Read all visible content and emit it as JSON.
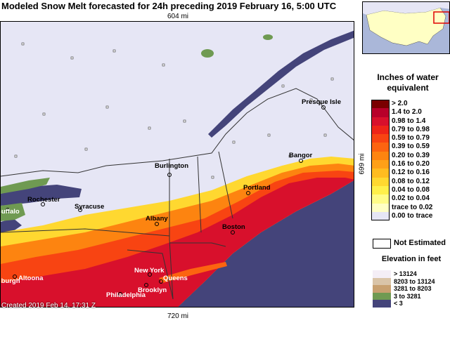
{
  "title": "Modeled Snow Melt forecasted for 24h preceding 2019 February 16, 5:00 UTC",
  "map": {
    "scale_top": "604 mi",
    "scale_bottom": "720 mi",
    "scale_right": "699 mi",
    "created": "Created 2019 Feb 14, 17:31 Z",
    "cities": {
      "presque_isle": "Presque Isle",
      "bangor": "Bangor",
      "burlington": "Burlington",
      "portland": "Portland",
      "rochester": "Rochester",
      "syracuse": "Syracuse",
      "buffalo": "Buffalo",
      "albany": "Albany",
      "boston": "Boston",
      "altoona": "Altoona",
      "pittsburgh": "Pittsburgh",
      "new_york": "New York",
      "queens": "Queens",
      "philadelphia": "Philadelphia",
      "brooklyn": "Brooklyn"
    }
  },
  "legend": {
    "title_line1": "Inches of water",
    "title_line2": "equivalent",
    "items": [
      {
        "label": ">  2.0",
        "color": "#7a0000"
      },
      {
        "label": "1.4  to  2.0",
        "color": "#b8002a"
      },
      {
        "label": "0.98  to  1.4",
        "color": "#d8102c"
      },
      {
        "label": "0.79  to  0.98",
        "color": "#ee2418"
      },
      {
        "label": "0.59  to  0.79",
        "color": "#f84412"
      },
      {
        "label": "0.39  to  0.59",
        "color": "#fc6410"
      },
      {
        "label": "0.20  to  0.39",
        "color": "#fd8410"
      },
      {
        "label": "0.16  to  0.20",
        "color": "#fea018"
      },
      {
        "label": "0.12  to  0.16",
        "color": "#ffbc20"
      },
      {
        "label": "0.08  to  0.12",
        "color": "#ffd830"
      },
      {
        "label": "0.04  to  0.08",
        "color": "#fff04a"
      },
      {
        "label": "0.02  to  0.04",
        "color": "#fffc88"
      },
      {
        "label": "trace to  0.02",
        "color": "#ffffc4"
      },
      {
        "label": "0.00  to  trace",
        "color": "#e6e6f5"
      }
    ],
    "not_estimated": "Not Estimated",
    "elevation_title": "Elevation in feet",
    "elevation_items": [
      {
        "label": ">  13124",
        "color": "#f4eef6"
      },
      {
        "label": "8203  to  13124",
        "color": "#d9c4a8"
      },
      {
        "label": "3281  to  8203",
        "color": "#c8a070"
      },
      {
        "label": "3  to  3281",
        "color": "#6f9a52"
      },
      {
        "label": "<  3",
        "color": "#44447a"
      }
    ]
  }
}
